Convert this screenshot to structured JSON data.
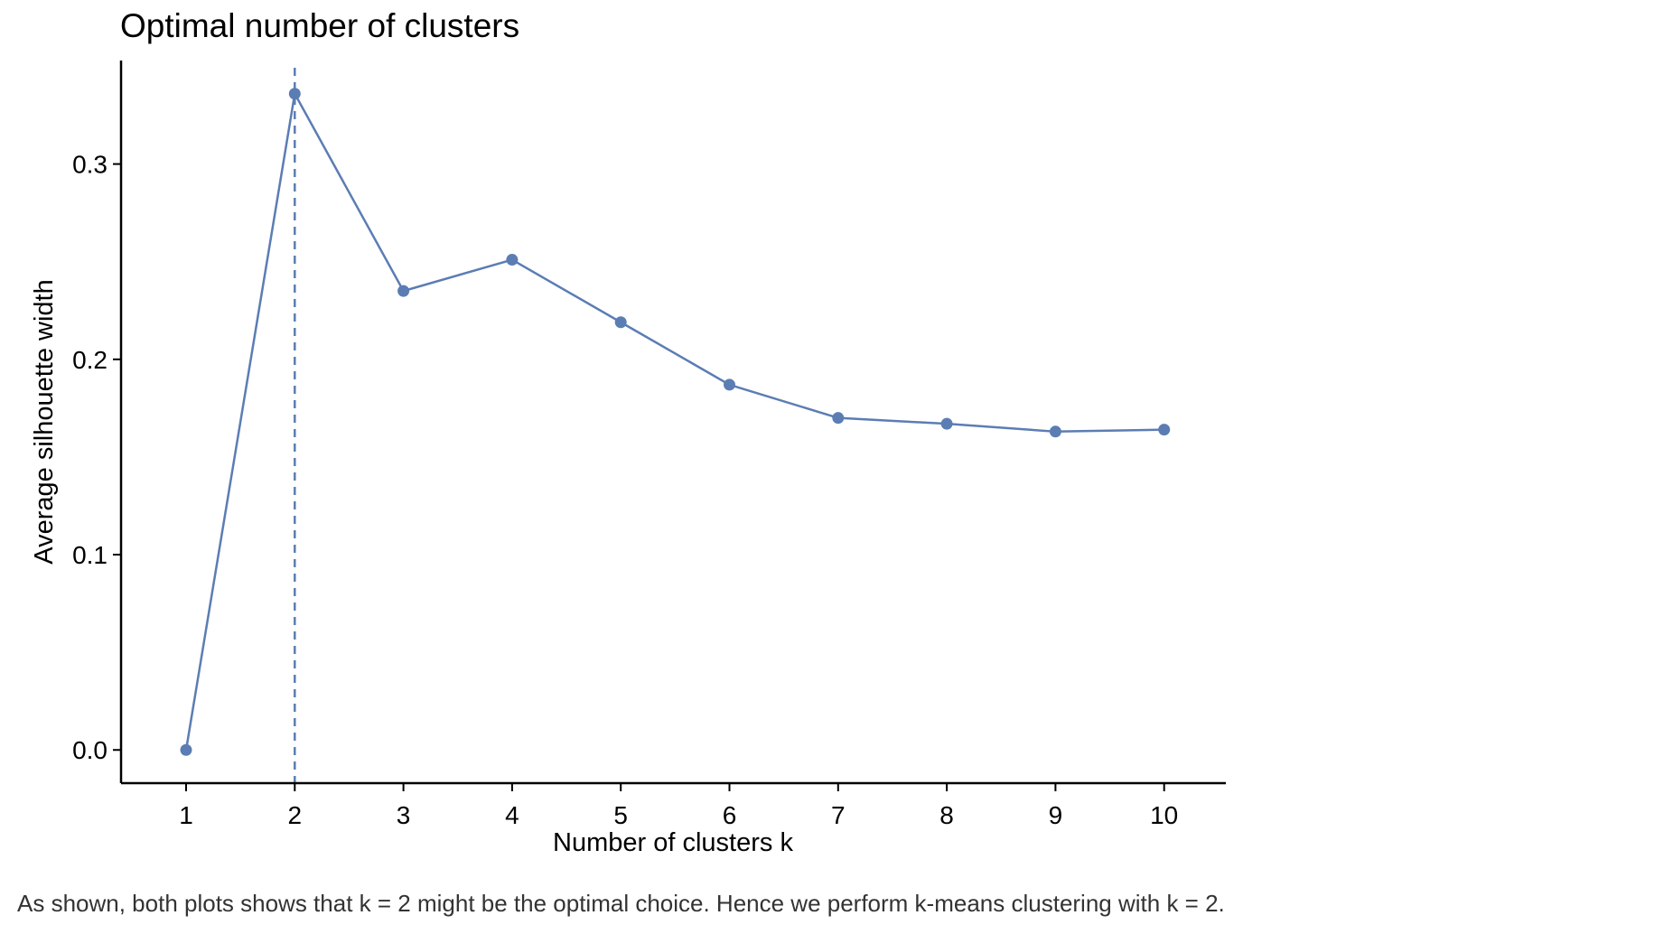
{
  "chart_data": {
    "type": "line",
    "title": "Optimal number of clusters",
    "xlabel": "Number of clusters k",
    "ylabel": "Average silhouette width",
    "categories": [
      "1",
      "2",
      "3",
      "4",
      "5",
      "6",
      "7",
      "8",
      "9",
      "10"
    ],
    "series": [
      {
        "values": [
          0.0,
          0.336,
          0.235,
          0.251,
          0.219,
          0.187,
          0.17,
          0.167,
          0.163,
          0.164
        ]
      }
    ],
    "yticks": [
      "0.0",
      "0.1",
      "0.2",
      "0.3"
    ],
    "ytick_values": [
      0.0,
      0.1,
      0.2,
      0.3
    ],
    "ylim": [
      -0.017,
      0.353
    ],
    "vline_at": "2",
    "grid": false,
    "colors": {
      "line": "#5b7db3",
      "vline": "#5b7db3",
      "axis": "#000000"
    }
  },
  "caption": "As shown, both plots shows that k = 2 might be the optimal choice. Hence we perform k-means clustering with k = 2."
}
